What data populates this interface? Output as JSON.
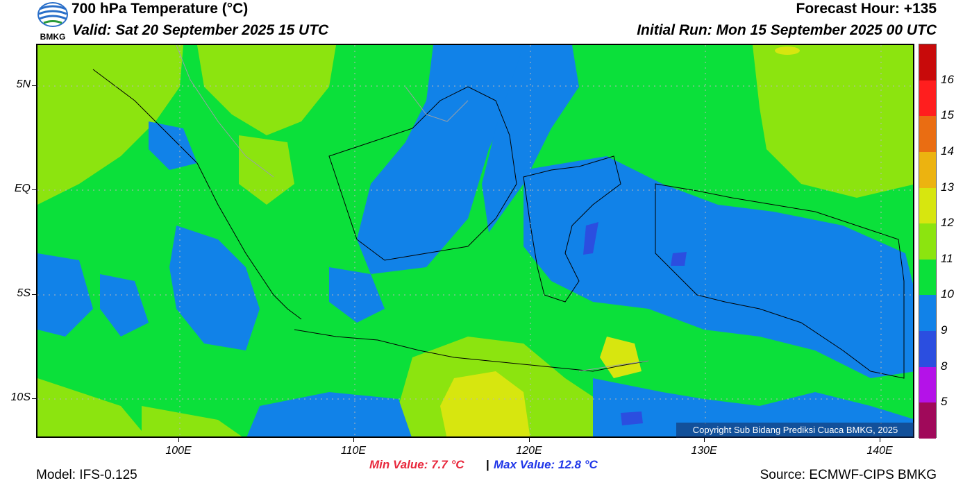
{
  "header": {
    "title": "700 hPa Temperature (°C)",
    "valid": "Valid: Sat 20 September 2025 15 UTC",
    "forecast_hour": "Forecast Hour: +135",
    "initial_run": "Initial Run: Mon 15 September 2025 00 UTC"
  },
  "logo": {
    "text": "BMKG",
    "icon": "bmkg-logo-icon"
  },
  "map": {
    "lat_ticks": [
      "5N",
      "EQ",
      "5S",
      "10S"
    ],
    "lon_ticks": [
      "100E",
      "110E",
      "120E",
      "130E",
      "140E"
    ],
    "copyright": "Copyright Sub Bidang Prediksi Cuaca BMKG, 2025"
  },
  "legend": {
    "labels": [
      "16",
      "15",
      "14",
      "13",
      "12",
      "11",
      "10",
      "9",
      "8",
      "5"
    ],
    "colors": [
      "#c80a0a",
      "#ff1e1e",
      "#ea6d12",
      "#ecb310",
      "#d7e60f",
      "#8ce40f",
      "#0be03a",
      "#1182e8",
      "#2b4ee0",
      "#b412e8",
      "#a0095a"
    ]
  },
  "stats": {
    "min": "Min Value: 7.7 °C",
    "separator": "|",
    "max": "Max Value: 12.8 °C"
  },
  "footer": {
    "model": "Model: IFS-0.125",
    "source": "Source: ECMWF-CIPS BMKG"
  }
}
